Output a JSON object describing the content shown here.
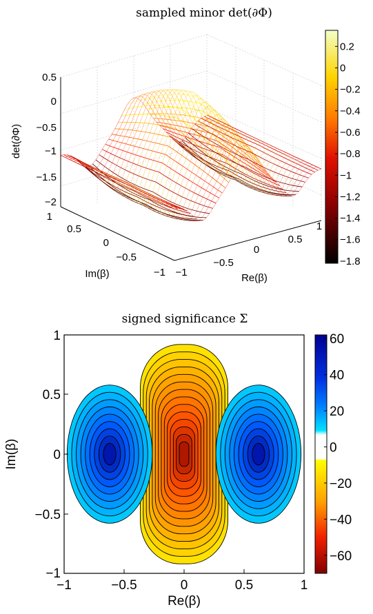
{
  "chart_data": [
    {
      "type": "surface",
      "title": "sampled minor det(∂Φ)",
      "xlabel": "Re(β)",
      "ylabel": "Im(β)",
      "zlabel": "det(∂Φ)",
      "x_ticks": [
        "−1",
        "−0.5",
        "0",
        "0.5",
        "1"
      ],
      "y_ticks": [
        "−1",
        "−0.5",
        "0",
        "0.5",
        "1"
      ],
      "z_ticks": [
        "−2",
        "−1.5",
        "−1",
        "−0.5",
        "0",
        "0.5"
      ],
      "xlim": [
        -1,
        1
      ],
      "ylim": [
        -1,
        1
      ],
      "zlim": [
        -2,
        0.5
      ],
      "features": {
        "ridge_center": {
          "x": 0,
          "z": 0.1
        },
        "valleys": [
          {
            "x": -0.62,
            "z": -1.75
          },
          {
            "x": 0.62,
            "z": -1.75
          }
        ],
        "edge_value": -1.0
      },
      "colorbar": {
        "ticks": [
          "0.2",
          "0",
          "−0.2",
          "−0.4",
          "−0.6",
          "−0.8",
          "−1",
          "−1.2",
          "−1.4",
          "−1.6",
          "−1.8"
        ],
        "range": [
          -1.82,
          0.35
        ],
        "colormap": "hot"
      }
    },
    {
      "type": "contour",
      "title": "signed significance Σ",
      "xlabel": "Re(β)",
      "ylabel": "Im(β)",
      "x_ticks": [
        "−1",
        "−0.5",
        "0",
        "0.5",
        "1"
      ],
      "y_ticks": [
        "−1",
        "−0.5",
        "0",
        "0.5",
        "1"
      ],
      "xlim": [
        -1,
        1
      ],
      "ylim": [
        -1,
        1
      ],
      "features": {
        "center_min": {
          "x": 0,
          "y": 0,
          "value": -68
        },
        "side_max": [
          {
            "x": -0.62,
            "y": 0,
            "value": 62
          },
          {
            "x": 0.62,
            "y": 0,
            "value": 62
          }
        ],
        "blank_band": [
          -8,
          8
        ]
      },
      "colorbar": {
        "ticks": [
          "60",
          "40",
          "20",
          "0",
          "−20",
          "−40",
          "−60"
        ],
        "range": [
          -70,
          62
        ]
      }
    }
  ]
}
